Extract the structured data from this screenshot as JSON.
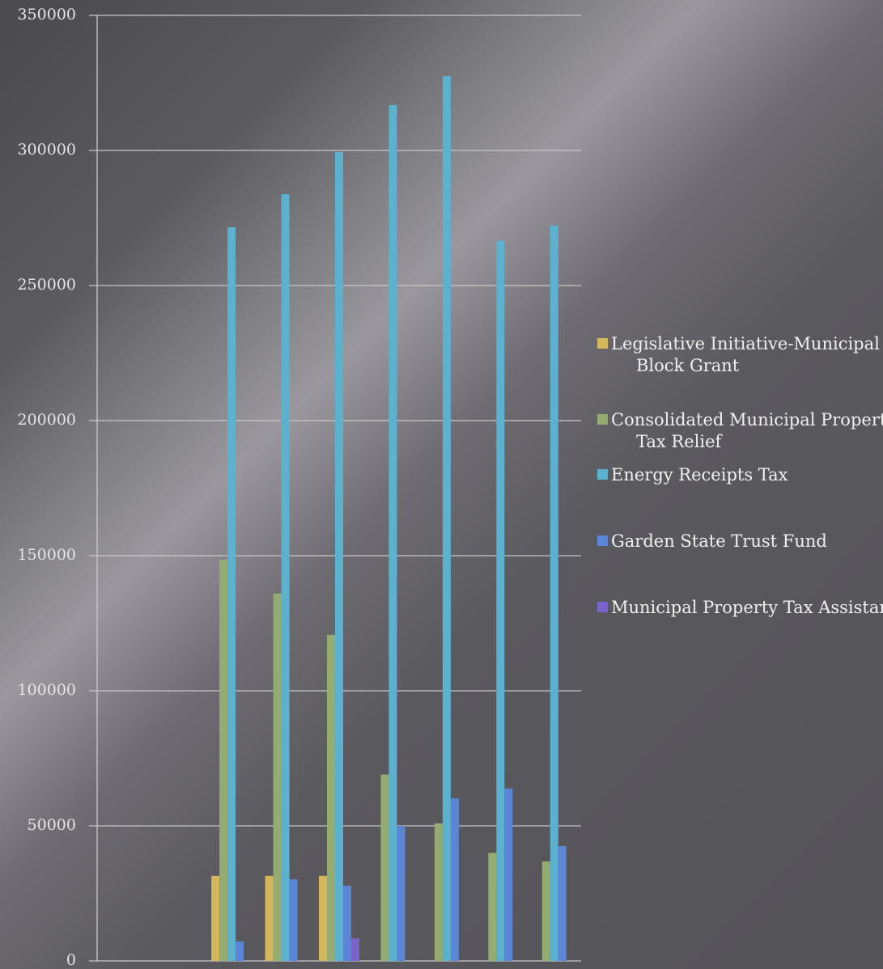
{
  "chart_data": {
    "type": "bar",
    "categories": [
      null,
      null,
      null,
      null,
      null,
      null,
      null,
      null,
      null
    ],
    "series": [
      {
        "name": "Legislative Initiative-Municipal Block Grant",
        "color": "#d4b75c",
        "values": [
          0,
          0,
          31500,
          31500,
          31500,
          0,
          0,
          0,
          0
        ]
      },
      {
        "name": "Consolidated Municipal Property Tax Relief",
        "color": "#94ab72",
        "values": [
          0,
          0,
          148500,
          136000,
          120700,
          69000,
          50900,
          40000,
          36800
        ]
      },
      {
        "name": "Energy Receipts Tax",
        "color": "#5cb1cf",
        "values": [
          0,
          0,
          271600,
          283800,
          299400,
          316800,
          327500,
          266500,
          272200
        ]
      },
      {
        "name": "Garden State Trust Fund",
        "color": "#5b86d6",
        "values": [
          0,
          0,
          7200,
          30200,
          27800,
          50000,
          60200,
          63800,
          42500
        ]
      },
      {
        "name": "Municipal Property Tax Assistance",
        "color": "#7c63cc",
        "values": [
          0,
          0,
          0,
          0,
          8400,
          0,
          0,
          0,
          0
        ]
      }
    ],
    "ylim": [
      0,
      350000
    ],
    "yticks": [
      0,
      50000,
      100000,
      150000,
      200000,
      250000,
      300000,
      350000
    ],
    "grid": true,
    "legend": "right"
  }
}
